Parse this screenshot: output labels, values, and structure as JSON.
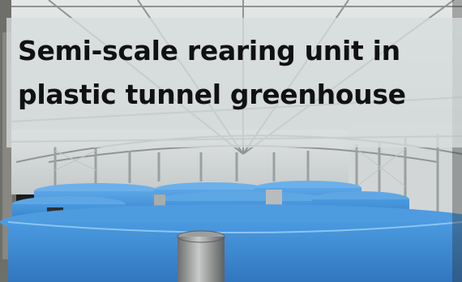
{
  "caption": {
    "line1": "Semi-scale rearing unit in",
    "line2": "plastic tunnel greenhouse"
  },
  "colors": {
    "tank_blue": "#3f8fd6",
    "tank_blue_dark": "#2f72b8",
    "greenhouse_wall": "#d8dcdc",
    "frame_gray": "#8f9494",
    "caption_text": "#111111"
  },
  "icons": [
    "greenhouse-photo"
  ]
}
